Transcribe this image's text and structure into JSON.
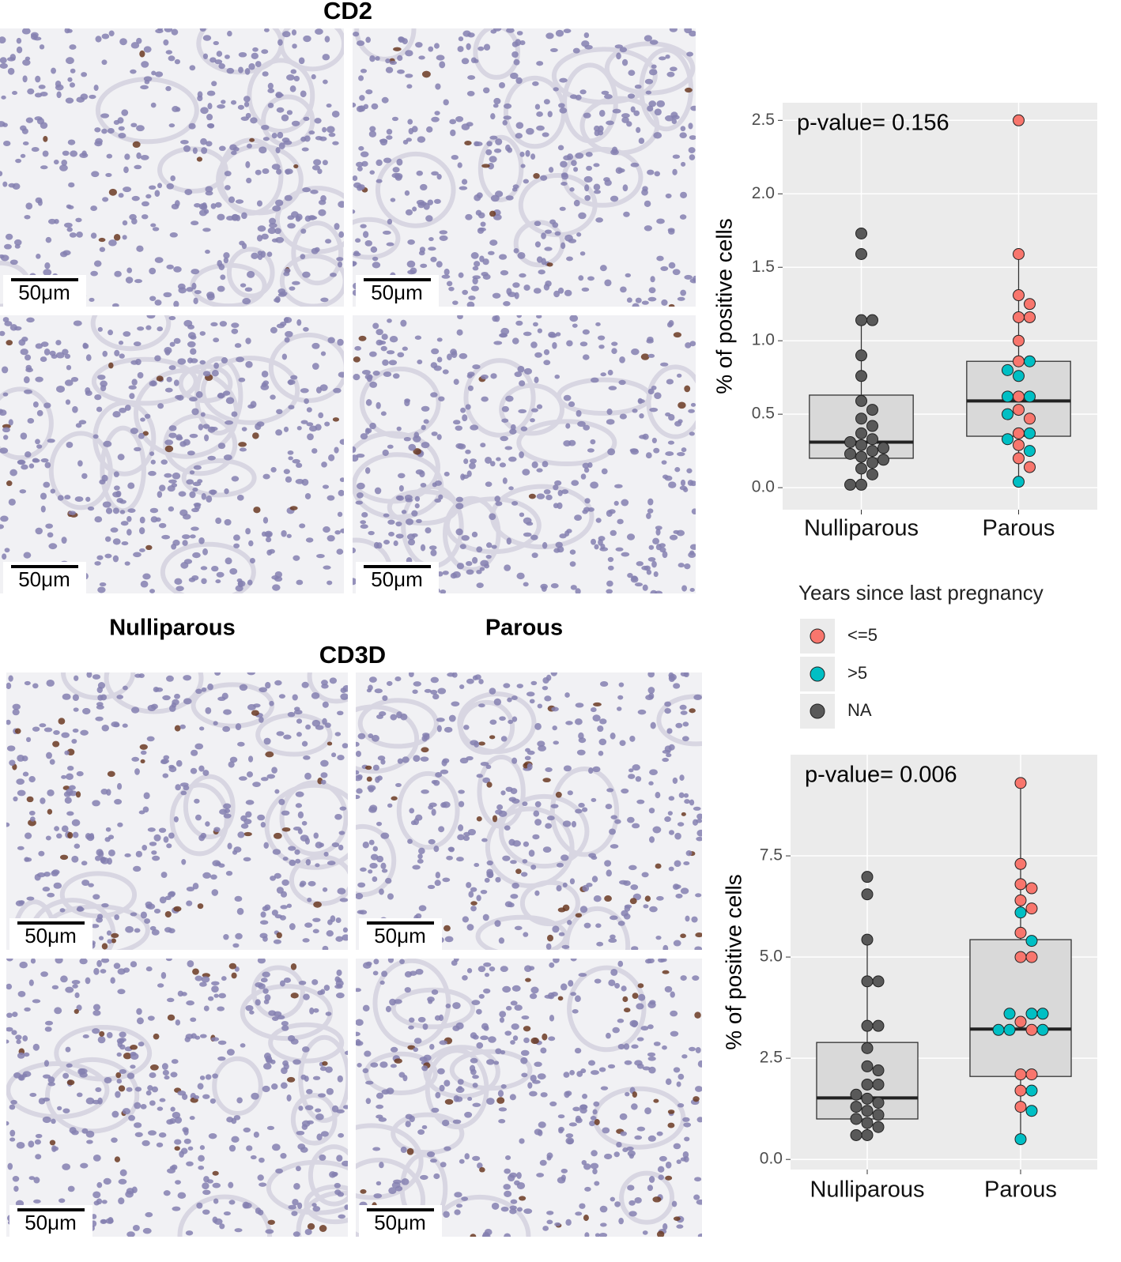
{
  "figure": {
    "panel_titles": [
      "CD2",
      "CD3D"
    ],
    "column_labels": [
      "Nulliparous",
      "Parous"
    ],
    "scale_bar": "50μm"
  },
  "legend": {
    "title": "Years since last pregnancy"
  },
  "chart_data": [
    {
      "type": "box",
      "annotation": "p-value= 0.156",
      "ylabel": "% of  positive cells",
      "categories": [
        "Nulliparous",
        "Parous"
      ],
      "ylim": [
        -0.15,
        2.62
      ],
      "yticks": [
        {
          "value": 0,
          "label": "0.0"
        },
        0.5,
        {
          "value": 1,
          "label": "1.0"
        },
        1.5,
        {
          "value": 2,
          "label": "2.0"
        },
        2.5
      ],
      "grid": true,
      "boxes": [
        {
          "whisker_low": 0.01,
          "q1": 0.2,
          "median": 0.31,
          "q3": 0.63,
          "whisker_high": 1.16
        },
        {
          "whisker_low": 0.04,
          "q1": 0.35,
          "median": 0.59,
          "q3": 0.86,
          "whisker_high": 1.6
        }
      ],
      "series": [
        {
          "name": "<=5",
          "color": "#f8766d",
          "x": [
            "Parous",
            "Parous",
            "Parous",
            "Parous",
            "Parous",
            "Parous",
            "Parous",
            "Parous",
            "Parous",
            "Parous",
            "Parous",
            "Parous",
            "Parous",
            "Parous",
            "Parous"
          ],
          "values": [
            2.5,
            1.59,
            1.31,
            1.25,
            1.16,
            1.16,
            1.0,
            0.86,
            0.62,
            0.53,
            0.47,
            0.37,
            0.29,
            0.2,
            0.14
          ]
        },
        {
          "name": ">5",
          "color": "#00bfc4",
          "x": [
            "Parous",
            "Parous",
            "Parous",
            "Parous",
            "Parous",
            "Parous",
            "Parous",
            "Parous",
            "Parous",
            "Parous"
          ],
          "values": [
            0.86,
            0.8,
            0.76,
            0.62,
            0.62,
            0.5,
            0.37,
            0.33,
            0.25,
            0.04
          ]
        },
        {
          "name": "NA",
          "color": "#595959",
          "x": [
            "Nulliparous",
            "Nulliparous",
            "Nulliparous",
            "Nulliparous",
            "Nulliparous",
            "Nulliparous",
            "Nulliparous",
            "Nulliparous",
            "Nulliparous",
            "Nulliparous",
            "Nulliparous",
            "Nulliparous",
            "Nulliparous",
            "Nulliparous",
            "Nulliparous",
            "Nulliparous",
            "Nulliparous",
            "Nulliparous",
            "Nulliparous",
            "Nulliparous",
            "Nulliparous",
            "Nulliparous",
            "Nulliparous",
            "Nulliparous"
          ],
          "values": [
            1.73,
            1.59,
            1.14,
            1.14,
            0.9,
            0.76,
            0.59,
            0.53,
            0.47,
            0.42,
            0.37,
            0.33,
            0.31,
            0.29,
            0.27,
            0.25,
            0.23,
            0.21,
            0.19,
            0.17,
            0.13,
            0.09,
            0.02,
            0.02
          ]
        }
      ]
    },
    {
      "type": "box",
      "annotation": "p-value= 0.006",
      "ylabel": "% of  positive cells",
      "categories": [
        "Nulliparous",
        "Parous"
      ],
      "ylim": [
        -0.25,
        10.0
      ],
      "yticks": [
        {
          "value": 0,
          "label": "0.0"
        },
        2.5,
        {
          "value": 5,
          "label": "5.0"
        },
        7.5
      ],
      "grid": true,
      "boxes": [
        {
          "whisker_low": 0.6,
          "q1": 1.0,
          "median": 1.52,
          "q3": 2.89,
          "whisker_high": 5.43
        },
        {
          "whisker_low": 0.48,
          "q1": 2.05,
          "median": 3.22,
          "q3": 5.43,
          "whisker_high": 9.3
        }
      ],
      "series": [
        {
          "name": "<=5",
          "color": "#f8766d",
          "x": [
            "Parous",
            "Parous",
            "Parous",
            "Parous",
            "Parous",
            "Parous",
            "Parous",
            "Parous",
            "Parous",
            "Parous",
            "Parous",
            "Parous",
            "Parous",
            "Parous",
            "Parous"
          ],
          "values": [
            9.3,
            7.3,
            6.8,
            6.7,
            6.4,
            6.2,
            5.6,
            5.0,
            5.0,
            3.4,
            3.2,
            2.1,
            2.1,
            1.7,
            1.3
          ]
        },
        {
          "name": ">5",
          "color": "#00bfc4",
          "x": [
            "Parous",
            "Parous",
            "Parous",
            "Parous",
            "Parous",
            "Parous",
            "Parous",
            "Parous",
            "Parous",
            "Parous",
            "Parous"
          ],
          "values": [
            6.1,
            5.4,
            3.6,
            3.6,
            3.6,
            3.2,
            3.2,
            3.2,
            1.7,
            1.2,
            0.5
          ]
        },
        {
          "name": "NA",
          "color": "#595959",
          "x": [
            "Nulliparous",
            "Nulliparous",
            "Nulliparous",
            "Nulliparous",
            "Nulliparous",
            "Nulliparous",
            "Nulliparous",
            "Nulliparous",
            "Nulliparous",
            "Nulliparous",
            "Nulliparous",
            "Nulliparous",
            "Nulliparous",
            "Nulliparous",
            "Nulliparous",
            "Nulliparous",
            "Nulliparous",
            "Nulliparous",
            "Nulliparous",
            "Nulliparous",
            "Nulliparous",
            "Nulliparous",
            "Nulliparous"
          ],
          "values": [
            6.98,
            6.55,
            5.43,
            4.4,
            4.4,
            3.3,
            3.3,
            2.75,
            2.3,
            2.2,
            1.85,
            1.85,
            1.6,
            1.5,
            1.4,
            1.3,
            1.2,
            1.1,
            1.0,
            0.9,
            0.8,
            0.6,
            0.6
          ]
        }
      ]
    }
  ]
}
